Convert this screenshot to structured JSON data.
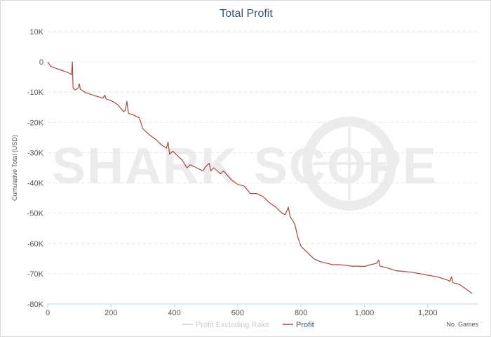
{
  "chart_data": {
    "type": "line",
    "title": "Total Profit",
    "xlabel": "No. Games",
    "ylabel": "Cumulative Total (USD)",
    "xlim": [
      0,
      1360
    ],
    "ylim": [
      -80000,
      10000
    ],
    "x_ticks": [
      0,
      200,
      400,
      600,
      800,
      1000,
      1200
    ],
    "x_tick_labels": [
      "0",
      "200",
      "400",
      "600",
      "800",
      "1,000",
      "1,200"
    ],
    "y_ticks": [
      10000,
      0,
      -10000,
      -20000,
      -30000,
      -40000,
      -50000,
      -60000,
      -70000,
      -80000
    ],
    "y_tick_labels": [
      "10K",
      "0",
      "-10K",
      "-20K",
      "-30K",
      "-40K",
      "-50K",
      "-60K",
      "-70K",
      "-80K"
    ],
    "grid": true,
    "legend_position": "bottom-center",
    "watermark": "SHARK SCOPE",
    "series": [
      {
        "name": "Profit Excluding Rake",
        "color": "#cccccc",
        "visible": false,
        "points": []
      },
      {
        "name": "Profit",
        "color": "#aa4643",
        "visible": true,
        "points": [
          [
            0,
            0
          ],
          [
            10,
            -1500
          ],
          [
            30,
            -2300
          ],
          [
            50,
            -3000
          ],
          [
            70,
            -3800
          ],
          [
            75,
            -4300
          ],
          [
            78,
            0
          ],
          [
            80,
            -8500
          ],
          [
            85,
            -9300
          ],
          [
            95,
            -8800
          ],
          [
            100,
            -7200
          ],
          [
            103,
            -9000
          ],
          [
            120,
            -10200
          ],
          [
            150,
            -11200
          ],
          [
            175,
            -12000
          ],
          [
            180,
            -11000
          ],
          [
            185,
            -12300
          ],
          [
            200,
            -12800
          ],
          [
            220,
            -14000
          ],
          [
            240,
            -16500
          ],
          [
            245,
            -16000
          ],
          [
            250,
            -13000
          ],
          [
            255,
            -17000
          ],
          [
            270,
            -17500
          ],
          [
            290,
            -18500
          ],
          [
            300,
            -22000
          ],
          [
            320,
            -24000
          ],
          [
            340,
            -25500
          ],
          [
            360,
            -27500
          ],
          [
            375,
            -28500
          ],
          [
            380,
            -26500
          ],
          [
            385,
            -30500
          ],
          [
            395,
            -29500
          ],
          [
            410,
            -31000
          ],
          [
            425,
            -32500
          ],
          [
            440,
            -35000
          ],
          [
            450,
            -34000
          ],
          [
            470,
            -35000
          ],
          [
            490,
            -36000
          ],
          [
            500,
            -34500
          ],
          [
            510,
            -33500
          ],
          [
            515,
            -36000
          ],
          [
            525,
            -35000
          ],
          [
            545,
            -37000
          ],
          [
            555,
            -36000
          ],
          [
            580,
            -39000
          ],
          [
            600,
            -40500
          ],
          [
            620,
            -41000
          ],
          [
            640,
            -43500
          ],
          [
            660,
            -43500
          ],
          [
            680,
            -44500
          ],
          [
            700,
            -46500
          ],
          [
            720,
            -48000
          ],
          [
            740,
            -50000
          ],
          [
            750,
            -50500
          ],
          [
            760,
            -48000
          ],
          [
            765,
            -51000
          ],
          [
            780,
            -53500
          ],
          [
            790,
            -58000
          ],
          [
            800,
            -61000
          ],
          [
            820,
            -63000
          ],
          [
            840,
            -65000
          ],
          [
            860,
            -66000
          ],
          [
            880,
            -66500
          ],
          [
            900,
            -67000
          ],
          [
            920,
            -67000
          ],
          [
            940,
            -67200
          ],
          [
            960,
            -67500
          ],
          [
            980,
            -67500
          ],
          [
            1000,
            -67600
          ],
          [
            1020,
            -67000
          ],
          [
            1040,
            -66500
          ],
          [
            1045,
            -65500
          ],
          [
            1050,
            -67500
          ],
          [
            1070,
            -68000
          ],
          [
            1100,
            -69000
          ],
          [
            1150,
            -69500
          ],
          [
            1200,
            -70500
          ],
          [
            1230,
            -71000
          ],
          [
            1260,
            -72000
          ],
          [
            1270,
            -72500
          ],
          [
            1275,
            -71000
          ],
          [
            1280,
            -73000
          ],
          [
            1300,
            -73500
          ],
          [
            1320,
            -75000
          ],
          [
            1340,
            -76500
          ]
        ]
      }
    ]
  }
}
